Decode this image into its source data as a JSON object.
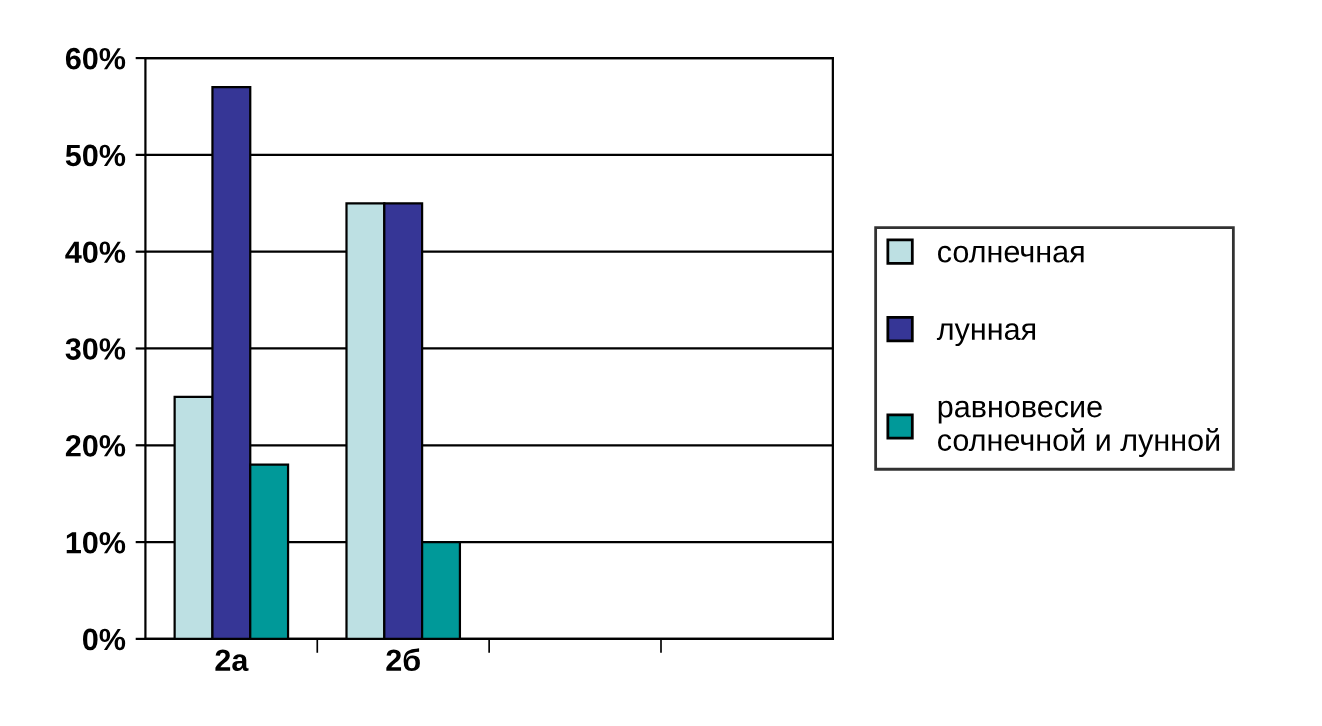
{
  "chart_data": {
    "type": "bar",
    "categories": [
      "2а",
      "2б",
      null,
      null
    ],
    "series": [
      {
        "name": "солнечная",
        "color": "#bde0e3",
        "values": [
          25,
          45,
          null,
          null
        ]
      },
      {
        "name": "лунная",
        "color": "#363696",
        "values": [
          57,
          45,
          null,
          null
        ]
      },
      {
        "name": "равновесие солнечной и лунной",
        "color": "#009999",
        "values": [
          18,
          10,
          null,
          null
        ]
      }
    ],
    "ylim": [
      0,
      60
    ],
    "yticks": [
      {
        "value": 0,
        "label": "0%"
      },
      {
        "value": 10,
        "label": "10%"
      },
      {
        "value": 20,
        "label": "20%"
      },
      {
        "value": 30,
        "label": "30%"
      },
      {
        "value": 40,
        "label": "40%"
      },
      {
        "value": 50,
        "label": "50%"
      },
      {
        "value": 60,
        "label": "60%"
      }
    ],
    "grid": "y",
    "legend": "right"
  }
}
